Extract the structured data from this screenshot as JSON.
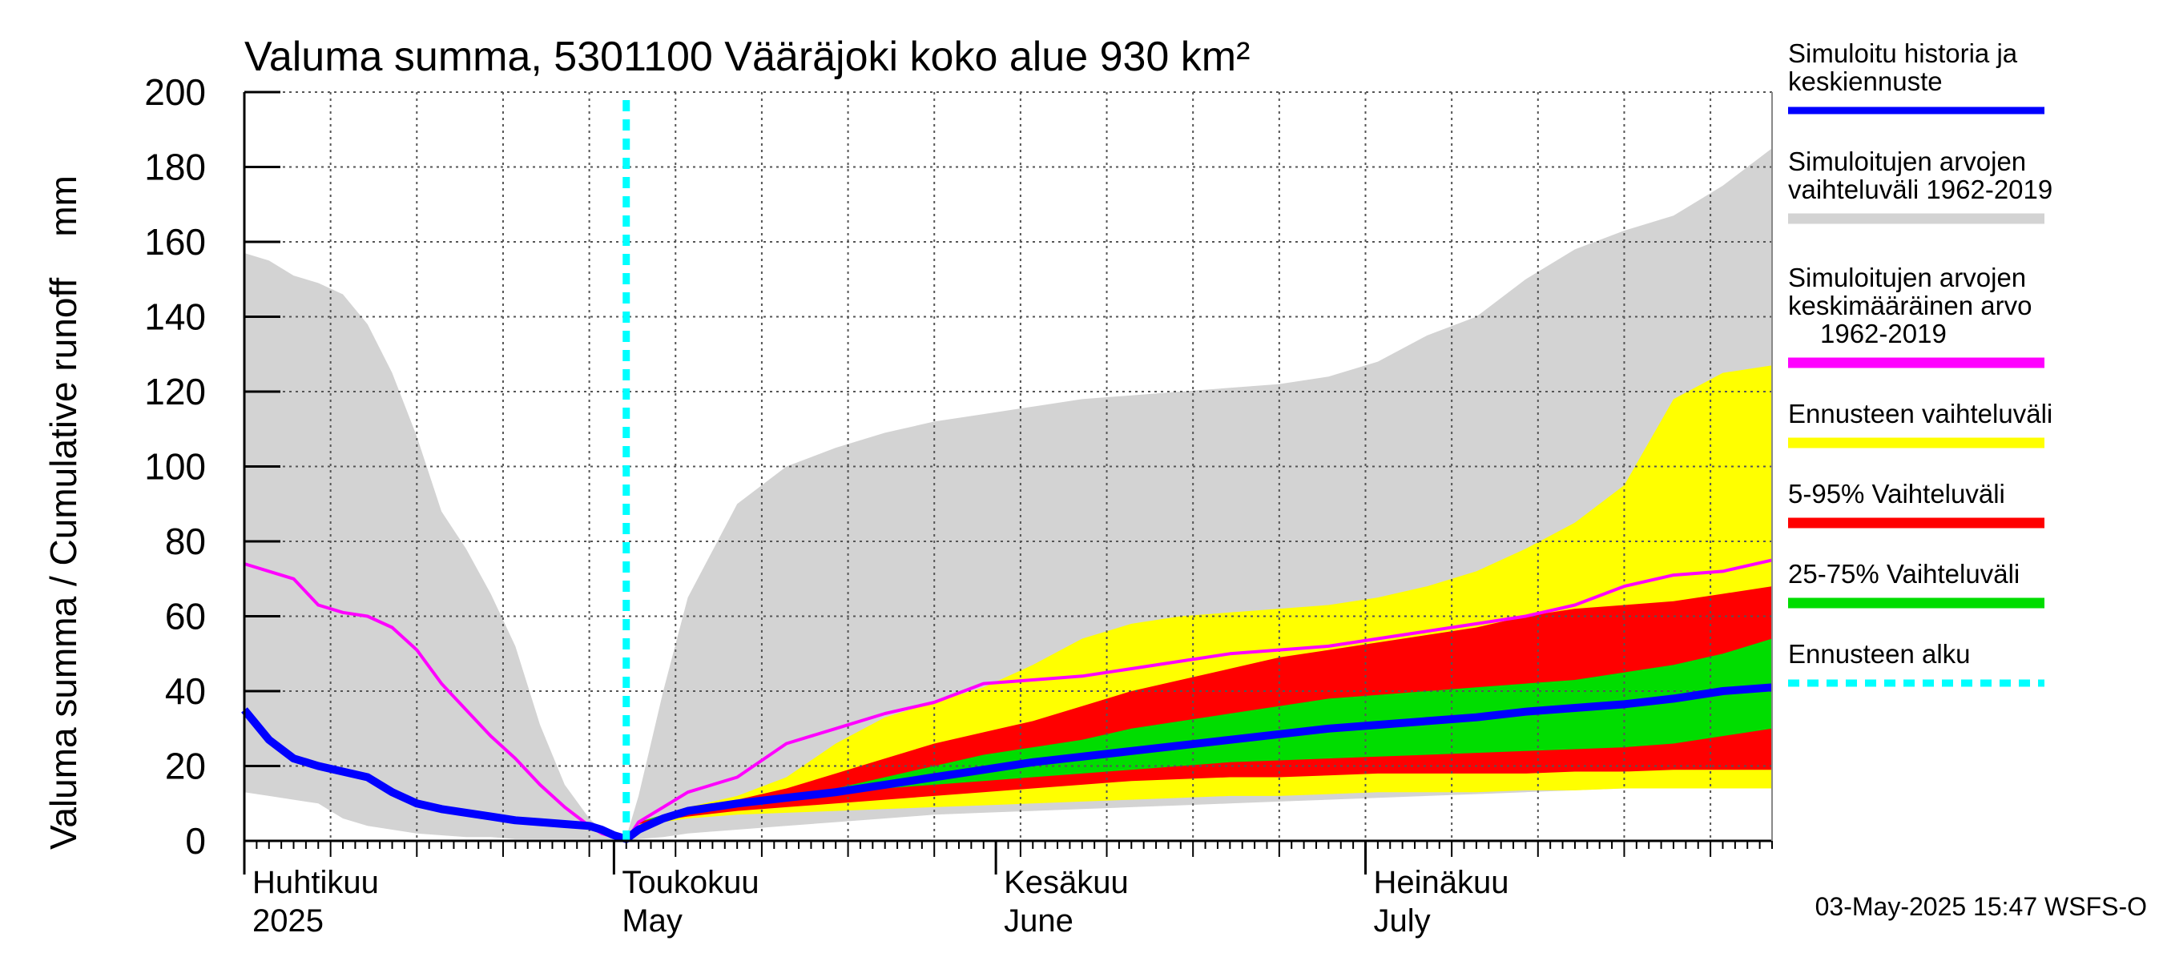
{
  "chart_data": {
    "type": "area",
    "title": "Valuma summa, 5301100 Vääräjoki koko alue 930 km²",
    "ylabel": "Valuma summa / Cumulative runoff    mm",
    "ylim": [
      0,
      200
    ],
    "yticks": [
      0,
      20,
      40,
      60,
      80,
      100,
      120,
      140,
      160,
      180,
      200
    ],
    "xlim": [
      0,
      124
    ],
    "x_unit": "days since 2025-03-31",
    "month_ticks": [
      {
        "day": 0,
        "fi": "Huhtikuu",
        "en": "2025"
      },
      {
        "day": 30,
        "fi": "Toukokuu",
        "en": "May"
      },
      {
        "day": 61,
        "fi": "Kesäkuu",
        "en": "June"
      },
      {
        "day": 91,
        "fi": "Heinäkuu",
        "en": "July"
      }
    ],
    "forecast_start_day": 31,
    "x": [
      0,
      2,
      4,
      6,
      8,
      10,
      12,
      14,
      16,
      18,
      20,
      22,
      24,
      26,
      28,
      29,
      30,
      31,
      32,
      34,
      36,
      40,
      44,
      48,
      52,
      56,
      60,
      64,
      68,
      72,
      76,
      80,
      84,
      88,
      92,
      96,
      100,
      104,
      108,
      112,
      116,
      120,
      124
    ],
    "series": [
      {
        "name": "Simuloitujen arvojen vaihteluväli 1962-2019 (max)",
        "role": "band_upper",
        "color": "#d3d3d3",
        "values": [
          157,
          155,
          151,
          149,
          146,
          138,
          125,
          108,
          88,
          78,
          66,
          52,
          31,
          15,
          6,
          3,
          2,
          1,
          12,
          40,
          65,
          90,
          100,
          105,
          109,
          112,
          114,
          116,
          118,
          119,
          120,
          121,
          122,
          124,
          128,
          135,
          140,
          150,
          158,
          163,
          167,
          175,
          185
        ]
      },
      {
        "name": "Simuloitujen arvojen vaihteluväli 1962-2019 (min)",
        "role": "band_lower",
        "color": "#d3d3d3",
        "values": [
          13,
          12,
          11,
          10,
          6,
          4,
          3,
          2,
          1.5,
          1,
          1,
          0.5,
          0.5,
          0.5,
          0.5,
          0.3,
          0.2,
          0,
          0.5,
          1,
          2,
          3,
          4,
          5,
          6,
          7,
          7.5,
          8,
          8.5,
          9,
          9.5,
          10,
          10.5,
          11,
          11.5,
          12,
          12.5,
          13,
          13.5,
          14,
          15,
          16,
          17
        ]
      },
      {
        "name": "Ennusteen vaihteluväli (max)",
        "role": "band_upper",
        "color": "#ffff00",
        "values": [
          null,
          null,
          null,
          null,
          null,
          null,
          null,
          null,
          null,
          null,
          null,
          null,
          null,
          null,
          null,
          null,
          null,
          null,
          5,
          7,
          9,
          12,
          17,
          26,
          33,
          37,
          41,
          47,
          54,
          58,
          60,
          61,
          62,
          63,
          65,
          68,
          72,
          78,
          85,
          95,
          118,
          125,
          127
        ]
      },
      {
        "name": "Ennusteen vaihteluväli (min)",
        "role": "band_lower",
        "color": "#ffff00",
        "values": [
          null,
          null,
          null,
          null,
          null,
          null,
          null,
          null,
          null,
          null,
          null,
          null,
          null,
          null,
          null,
          null,
          null,
          null,
          4,
          5,
          6,
          7,
          7.5,
          8,
          8.5,
          9,
          9.5,
          10,
          10.5,
          11,
          11.5,
          12,
          12,
          12.5,
          13,
          13,
          13,
          13.5,
          13.5,
          14,
          14,
          14,
          14
        ]
      },
      {
        "name": "5-95% Vaihteluväli (max)",
        "role": "band_upper",
        "color": "#ff0000",
        "values": [
          null,
          null,
          null,
          null,
          null,
          null,
          null,
          null,
          null,
          null,
          null,
          null,
          null,
          null,
          null,
          null,
          null,
          null,
          5,
          7,
          9,
          11,
          14,
          18,
          22,
          26,
          29,
          32,
          36,
          40,
          43,
          46,
          49,
          51,
          53,
          55,
          57,
          60,
          62,
          63,
          64,
          66,
          68
        ]
      },
      {
        "name": "5-95% Vaihteluväli (min)",
        "role": "band_lower",
        "color": "#ff0000",
        "values": [
          null,
          null,
          null,
          null,
          null,
          null,
          null,
          null,
          null,
          null,
          null,
          null,
          null,
          null,
          null,
          null,
          null,
          null,
          4.5,
          5.5,
          6.5,
          8,
          9,
          10,
          11,
          12,
          13,
          14,
          15,
          16,
          16.5,
          17,
          17,
          17.5,
          18,
          18,
          18,
          18,
          18.5,
          18.5,
          19,
          19,
          19
        ]
      },
      {
        "name": "25-75% Vaihteluväli (max)",
        "role": "band_upper",
        "color": "#00dd00",
        "values": [
          null,
          null,
          null,
          null,
          null,
          null,
          null,
          null,
          null,
          null,
          null,
          null,
          null,
          null,
          null,
          null,
          null,
          null,
          5,
          7,
          8.5,
          10,
          12,
          14,
          17,
          20,
          23,
          25,
          27,
          30,
          32,
          34,
          36,
          38,
          39,
          40,
          41,
          42,
          43,
          45,
          47,
          50,
          54
        ]
      },
      {
        "name": "25-75% Vaihteluväli (min)",
        "role": "band_lower",
        "color": "#00dd00",
        "values": [
          null,
          null,
          null,
          null,
          null,
          null,
          null,
          null,
          null,
          null,
          null,
          null,
          null,
          null,
          null,
          null,
          null,
          null,
          5,
          6.5,
          8,
          9.5,
          11,
          12.5,
          14,
          15,
          16,
          17,
          18,
          19,
          20,
          21,
          21.5,
          22,
          22.5,
          23,
          23.5,
          24,
          24.5,
          25,
          26,
          28,
          30
        ]
      },
      {
        "name": "Simuloitujen arvojen keskimääräinen arvo 1962-2019",
        "role": "line",
        "color": "#ff00ff",
        "values": [
          74,
          72,
          70,
          63,
          61,
          60,
          57,
          51,
          42,
          35,
          28,
          22,
          15,
          9,
          4,
          2,
          1,
          0,
          5,
          9,
          13,
          17,
          26,
          30,
          34,
          37,
          42,
          43,
          44,
          46,
          48,
          50,
          51,
          52,
          54,
          56,
          58,
          60,
          63,
          68,
          71,
          72,
          75
        ]
      },
      {
        "name": "Simuloitu historia ja keskiennuste",
        "role": "line",
        "color": "#0000ff",
        "values": [
          35,
          27,
          22,
          20,
          18.5,
          17,
          13,
          10,
          8.5,
          7.5,
          6.5,
          5.5,
          5,
          4.5,
          4,
          3,
          1.5,
          0.5,
          3,
          6,
          8,
          10,
          11.5,
          13,
          15,
          17,
          19,
          21,
          22.5,
          24,
          25.5,
          27,
          28.5,
          30,
          31,
          32,
          33,
          34.5,
          35.5,
          36.5,
          38,
          40,
          41
        ]
      }
    ]
  },
  "legend": [
    {
      "lines": [
        "Simuloitu historia ja",
        "keskiennuste"
      ],
      "color": "#0000ff",
      "style": "solid"
    },
    {
      "lines": [
        "Simuloitujen arvojen",
        "vaihteluväli 1962-2019"
      ],
      "color": "#d3d3d3",
      "style": "solid"
    },
    {
      "lines": [
        "Simuloitujen arvojen",
        "keskimääräinen arvo",
        "1962-2019"
      ],
      "color": "#ff00ff",
      "style": "solid"
    },
    {
      "lines": [
        "Ennusteen vaihteluväli"
      ],
      "color": "#ffff00",
      "style": "solid"
    },
    {
      "lines": [
        "5-95% Vaihteluväli"
      ],
      "color": "#ff0000",
      "style": "solid"
    },
    {
      "lines": [
        "25-75% Vaihteluväli"
      ],
      "color": "#00dd00",
      "style": "solid"
    },
    {
      "lines": [
        "Ennusteen alku"
      ],
      "color": "#00ffff",
      "style": "dashed"
    }
  ],
  "footer": "03-May-2025 15:47 WSFS-O"
}
